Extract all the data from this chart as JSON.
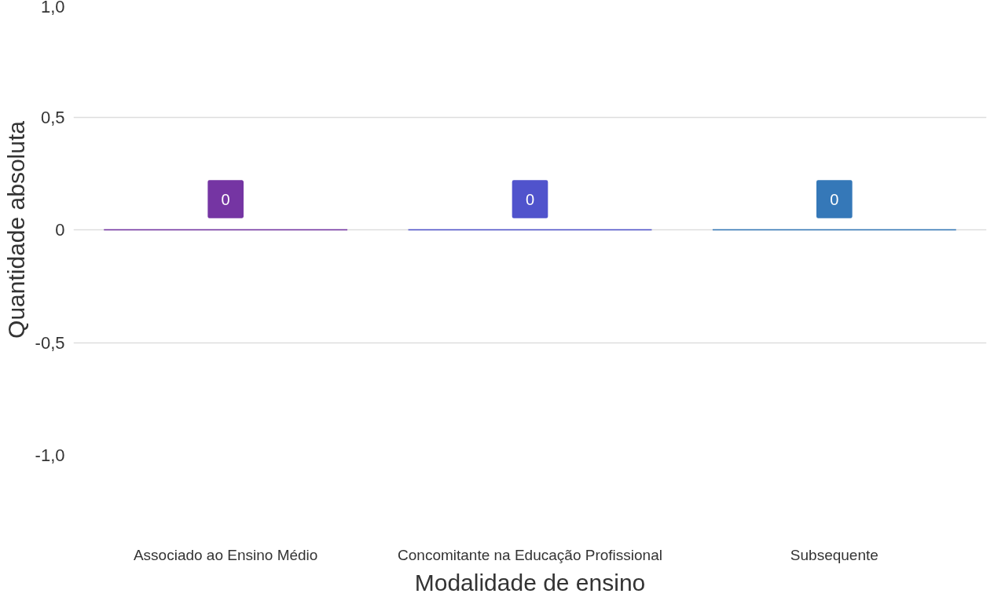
{
  "chart_data": {
    "type": "bar",
    "xlabel": "Modalidade de ensino",
    "ylabel": "Quantidade absoluta",
    "categories": [
      "Associado ao Ensino Médio",
      "Concomitante na Educação Profissional",
      "Subsequente"
    ],
    "values": [
      0,
      0,
      0
    ],
    "colors": [
      "#7535a3",
      "#5053cc",
      "#3578b8"
    ],
    "ylim": [
      -1.0,
      1.0
    ],
    "yticks": [
      {
        "value": -1.0,
        "label": "-1,0"
      },
      {
        "value": -0.5,
        "label": "-0,5"
      },
      0,
      {
        "value": 0.5,
        "label": "0,5"
      },
      {
        "value": 1.0,
        "label": "1,0"
      }
    ],
    "grid": "y",
    "data_labels": true
  }
}
